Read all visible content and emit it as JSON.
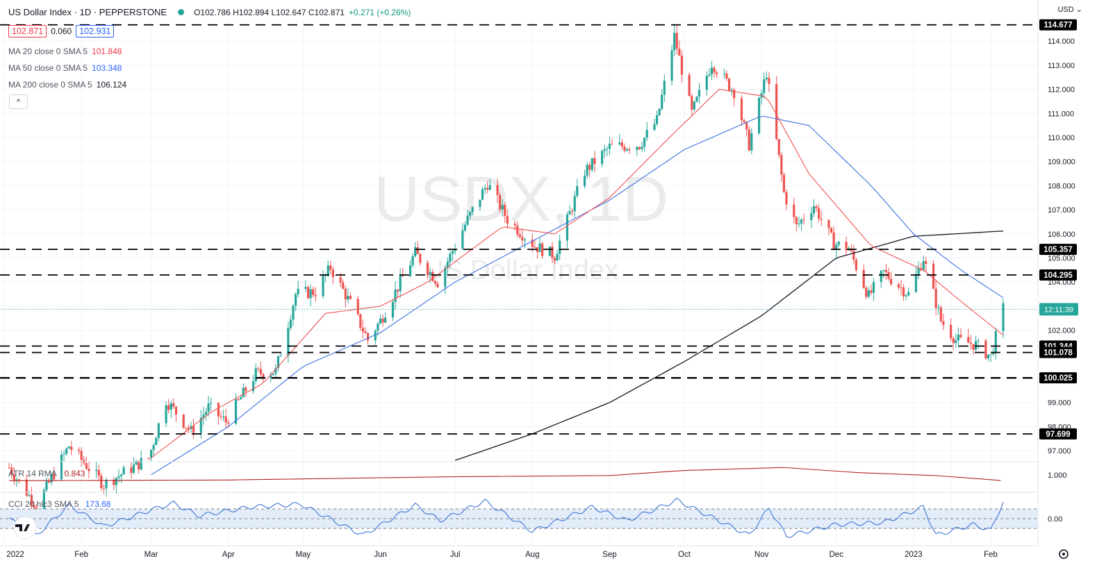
{
  "header": {
    "title": "US Dollar Index · 1D · PEPPERSTONE",
    "ohlc": "O102.786 H102.894 L102.647 C102.871",
    "change": "+0.271 (+0.26%)",
    "bid": "102.871",
    "spread": "0.060",
    "ask": "102.931"
  },
  "indicators": {
    "ma20_label": "MA 20 close 0 SMA 5",
    "ma20_value": "101.848",
    "ma50_label": "MA 50 close 0 SMA 5",
    "ma50_value": "103.348",
    "ma200_label": "MA 200 close 0 SMA 5",
    "ma200_value": "106.124",
    "collapse_icon": "^",
    "atr_label": "ATR 14 RMA",
    "atr_value": "0.843",
    "cci_label": "CCI 20 hlc3 SMA 5",
    "cci_value": "173.68"
  },
  "axis": {
    "currency": "USD",
    "countdown": "12:11:39",
    "atr_tick": "1.000",
    "cci_tick": "0.00",
    "x_ticks": [
      "2022",
      "Feb",
      "Mar",
      "Apr",
      "May",
      "Jun",
      "Jul",
      "Aug",
      "Sep",
      "Oct",
      "Nov",
      "Dec",
      "2023",
      "Jan",
      "Feb"
    ]
  },
  "watermark": {
    "symbol": "USDX, 1D",
    "name": "US Dollar Index"
  },
  "colors": {
    "up": "#26a69a",
    "down": "#ef5350",
    "ma20": "#f05050",
    "ma50": "#3b6fe0",
    "ma200": "#131722",
    "atr": "#b22222",
    "cci": "#3e74d6",
    "cci_band": "#e3edf9",
    "level": "#000000",
    "price_line": "#26a69a"
  },
  "chart_data": {
    "type": "candlestick",
    "title": "US Dollar Index · 1D · PEPPERSTONE",
    "x_range": [
      "2022-01-01",
      "2023-02-06"
    ],
    "ylim": [
      96.6,
      114.9
    ],
    "y_ticks": [
      97,
      98,
      99,
      100,
      101,
      102,
      103,
      104,
      105,
      106,
      107,
      108,
      109,
      110,
      111,
      112,
      113,
      114
    ],
    "levels": [
      114.677,
      105.357,
      104.295,
      101.344,
      101.078,
      100.025,
      97.699
    ],
    "current_price": 102.871,
    "price_path": [
      [
        "2022-01-03",
        96.3
      ],
      [
        "2022-01-14",
        94.7
      ],
      [
        "2022-01-27",
        97.2
      ],
      [
        "2022-02-10",
        95.6
      ],
      [
        "2022-02-28",
        96.7
      ],
      [
        "2022-03-07",
        99.1
      ],
      [
        "2022-03-17",
        97.8
      ],
      [
        "2022-03-24",
        98.8
      ],
      [
        "2022-03-31",
        98.2
      ],
      [
        "2022-04-12",
        100.2
      ],
      [
        "2022-04-20",
        100.3
      ],
      [
        "2022-04-28",
        103.5
      ],
      [
        "2022-05-06",
        103.6
      ],
      [
        "2022-05-12",
        104.6
      ],
      [
        "2022-05-20",
        103.1
      ],
      [
        "2022-05-27",
        101.6
      ],
      [
        "2022-06-01",
        102.4
      ],
      [
        "2022-06-15",
        105.2
      ],
      [
        "2022-06-24",
        104.0
      ],
      [
        "2022-07-06",
        106.6
      ],
      [
        "2022-07-14",
        108.1
      ],
      [
        "2022-07-22",
        106.6
      ],
      [
        "2022-08-02",
        105.5
      ],
      [
        "2022-08-10",
        105.1
      ],
      [
        "2022-08-22",
        108.6
      ],
      [
        "2022-09-01",
        109.6
      ],
      [
        "2022-09-13",
        109.7
      ],
      [
        "2022-09-20",
        110.7
      ],
      [
        "2022-09-27",
        114.2
      ],
      [
        "2022-10-04",
        111.0
      ],
      [
        "2022-10-12",
        113.1
      ],
      [
        "2022-10-21",
        111.9
      ],
      [
        "2022-10-27",
        109.7
      ],
      [
        "2022-11-03",
        112.7
      ],
      [
        "2022-11-10",
        107.7
      ],
      [
        "2022-11-15",
        106.3
      ],
      [
        "2022-11-22",
        107.2
      ],
      [
        "2022-11-30",
        105.6
      ],
      [
        "2022-12-06",
        105.4
      ],
      [
        "2022-12-14",
        103.4
      ],
      [
        "2022-12-20",
        104.4
      ],
      [
        "2022-12-30",
        103.5
      ],
      [
        "2023-01-05",
        105.0
      ],
      [
        "2023-01-12",
        102.4
      ],
      [
        "2023-01-18",
        101.6
      ],
      [
        "2023-01-26",
        101.4
      ],
      [
        "2023-02-01",
        100.9
      ],
      [
        "2023-02-06",
        102.9
      ]
    ],
    "ma20_path": [
      [
        "2022-03-01",
        96.7
      ],
      [
        "2022-03-25",
        98.6
      ],
      [
        "2022-04-15",
        99.8
      ],
      [
        "2022-05-10",
        102.7
      ],
      [
        "2022-06-01",
        103.0
      ],
      [
        "2022-06-20",
        104.0
      ],
      [
        "2022-07-20",
        106.3
      ],
      [
        "2022-08-10",
        106.0
      ],
      [
        "2022-09-01",
        107.5
      ],
      [
        "2022-09-25",
        110.0
      ],
      [
        "2022-10-15",
        112.0
      ],
      [
        "2022-11-03",
        111.7
      ],
      [
        "2022-11-20",
        108.5
      ],
      [
        "2022-12-15",
        105.5
      ],
      [
        "2023-01-05",
        104.5
      ],
      [
        "2023-01-20",
        103.2
      ],
      [
        "2023-02-06",
        101.8
      ]
    ],
    "ma50_path": [
      [
        "2022-03-01",
        96.0
      ],
      [
        "2022-04-01",
        98.0
      ],
      [
        "2022-05-01",
        100.5
      ],
      [
        "2022-06-01",
        101.9
      ],
      [
        "2022-07-01",
        104.0
      ],
      [
        "2022-08-01",
        105.7
      ],
      [
        "2022-09-01",
        107.4
      ],
      [
        "2022-10-01",
        109.5
      ],
      [
        "2022-11-01",
        110.9
      ],
      [
        "2022-11-20",
        110.5
      ],
      [
        "2022-12-15",
        108.0
      ],
      [
        "2023-01-01",
        106.0
      ],
      [
        "2023-01-20",
        104.5
      ],
      [
        "2023-02-06",
        103.35
      ]
    ],
    "ma200_path": [
      [
        "2022-07-01",
        96.6
      ],
      [
        "2022-08-01",
        97.7
      ],
      [
        "2022-09-01",
        99.0
      ],
      [
        "2022-10-01",
        100.7
      ],
      [
        "2022-11-01",
        102.6
      ],
      [
        "2022-12-01",
        105.0
      ],
      [
        "2023-01-01",
        105.9
      ],
      [
        "2023-02-06",
        106.12
      ]
    ],
    "atr_path": [
      [
        "2022-01-03",
        0.84
      ],
      [
        "2022-04-01",
        0.86
      ],
      [
        "2022-07-01",
        0.95
      ],
      [
        "2022-09-01",
        0.98
      ],
      [
        "2022-10-01",
        1.12
      ],
      [
        "2022-11-10",
        1.2
      ],
      [
        "2022-12-10",
        1.06
      ],
      [
        "2023-01-10",
        0.98
      ],
      [
        "2023-02-06",
        0.843
      ]
    ],
    "cci_path": [
      [
        "2022-01-03",
        30
      ],
      [
        "2022-01-07",
        -90
      ],
      [
        "2022-01-14",
        -170
      ],
      [
        "2022-01-27",
        140
      ],
      [
        "2022-02-10",
        -80
      ],
      [
        "2022-03-01",
        90
      ],
      [
        "2022-03-10",
        160
      ],
      [
        "2022-03-20",
        30
      ],
      [
        "2022-04-10",
        120
      ],
      [
        "2022-04-30",
        150
      ],
      [
        "2022-05-25",
        -170
      ],
      [
        "2022-06-15",
        140
      ],
      [
        "2022-06-25",
        -20
      ],
      [
        "2022-07-13",
        180
      ],
      [
        "2022-08-01",
        -130
      ],
      [
        "2022-08-25",
        120
      ],
      [
        "2022-09-08",
        -20
      ],
      [
        "2022-09-28",
        190
      ],
      [
        "2022-10-10",
        40
      ],
      [
        "2022-10-27",
        -170
      ],
      [
        "2022-11-04",
        110
      ],
      [
        "2022-11-11",
        -180
      ],
      [
        "2022-12-01",
        -60
      ],
      [
        "2022-12-20",
        -40
      ],
      [
        "2023-01-05",
        120
      ],
      [
        "2023-01-10",
        -170
      ],
      [
        "2023-01-25",
        -60
      ],
      [
        "2023-02-01",
        -120
      ],
      [
        "2023-02-06",
        173.68
      ]
    ],
    "cci_band": [
      -100,
      100
    ],
    "xlabel": "",
    "ylabel": "",
    "legend": "top-left",
    "grid": true
  }
}
